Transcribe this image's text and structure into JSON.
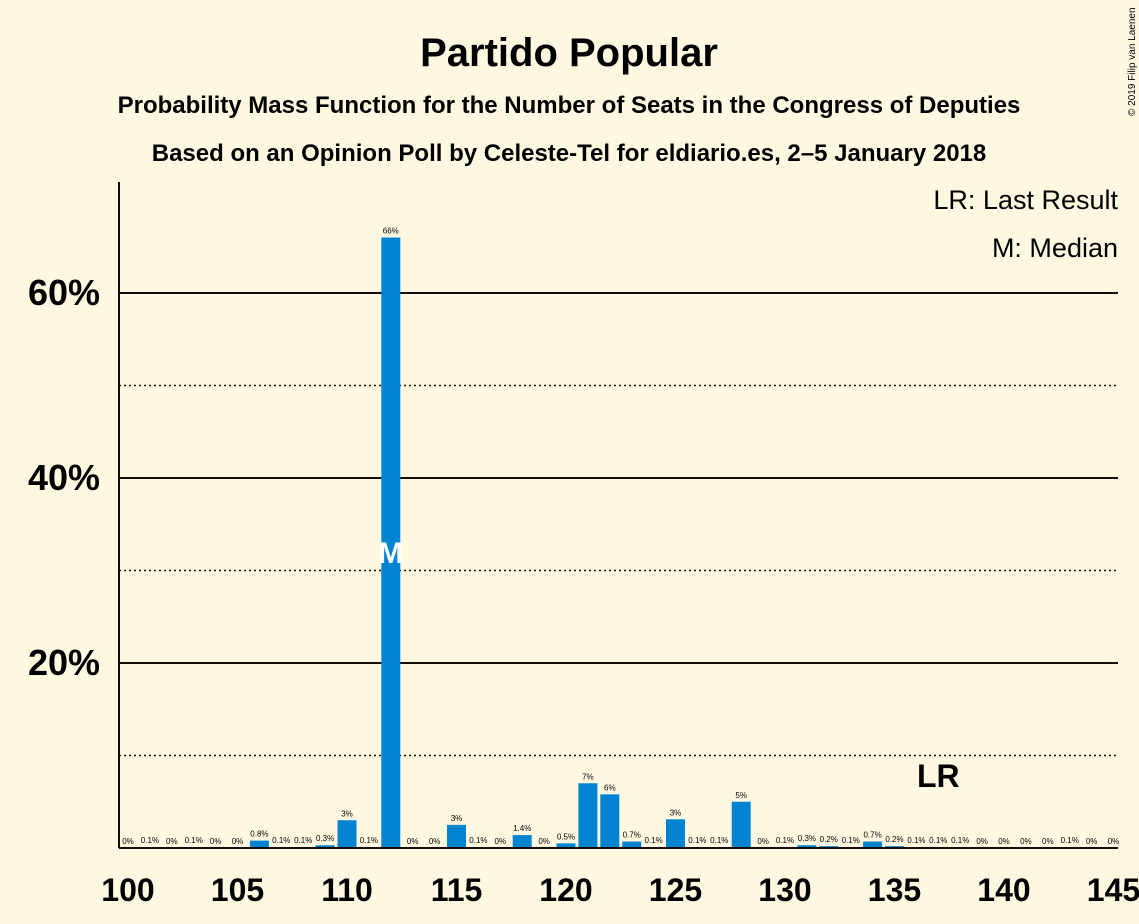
{
  "chart_data": {
    "type": "bar",
    "title": "Partido Popular",
    "subtitle_1": "Probability Mass Function for the Number of Seats in the Congress of Deputies",
    "subtitle_2": "Based on an Opinion Poll by Celeste-Tel for eldiario.es, 2–5 January 2018",
    "copyright": "© 2019 Filip van Laenen",
    "legend": {
      "lr": "LR: Last Result",
      "median": "M: Median"
    },
    "lr_marker": {
      "label": "LR",
      "seat": 137
    },
    "median_marker": {
      "label": "M",
      "seat": 112,
      "value": 33
    },
    "xlim": [
      100,
      145
    ],
    "ylim": [
      0,
      72
    ],
    "y_ticks": [
      {
        "value": 20,
        "label": "20%"
      },
      {
        "value": 40,
        "label": "40%"
      },
      {
        "value": 60,
        "label": "60%"
      }
    ],
    "y_dotted": [
      10,
      30,
      50
    ],
    "x_ticks": [
      100,
      105,
      110,
      115,
      120,
      125,
      130,
      135,
      140,
      145
    ],
    "series": [
      {
        "color": "#0084d1",
        "points": [
          {
            "seat": 100,
            "value": 0,
            "label": "0%"
          },
          {
            "seat": 101,
            "value": 0.1,
            "label": "0.1%"
          },
          {
            "seat": 102,
            "value": 0,
            "label": "0%"
          },
          {
            "seat": 103,
            "value": 0.1,
            "label": "0.1%"
          },
          {
            "seat": 104,
            "value": 0,
            "label": "0%"
          },
          {
            "seat": 105,
            "value": 0,
            "label": "0%"
          },
          {
            "seat": 106,
            "value": 0.8,
            "label": "0.8%"
          },
          {
            "seat": 107,
            "value": 0.1,
            "label": "0.1%"
          },
          {
            "seat": 108,
            "value": 0.1,
            "label": "0.1%"
          },
          {
            "seat": 109,
            "value": 0.3,
            "label": "0.3%"
          },
          {
            "seat": 110,
            "value": 3,
            "label": "3%"
          },
          {
            "seat": 111,
            "value": 0.1,
            "label": "0.1%"
          },
          {
            "seat": 112,
            "value": 66,
            "label": "66%"
          },
          {
            "seat": 113,
            "value": 0,
            "label": "0%"
          },
          {
            "seat": 114,
            "value": 0,
            "label": "0%"
          },
          {
            "seat": 115,
            "value": 2.5,
            "label": "3%"
          },
          {
            "seat": 116,
            "value": 0.1,
            "label": "0.1%"
          },
          {
            "seat": 117,
            "value": 0,
            "label": "0%"
          },
          {
            "seat": 118,
            "value": 1.4,
            "label": "1.4%"
          },
          {
            "seat": 119,
            "value": 0,
            "label": "0%"
          },
          {
            "seat": 120,
            "value": 0.5,
            "label": "0.5%"
          },
          {
            "seat": 121,
            "value": 7,
            "label": "7%"
          },
          {
            "seat": 122,
            "value": 5.8,
            "label": "6%"
          },
          {
            "seat": 123,
            "value": 0.7,
            "label": "0.7%"
          },
          {
            "seat": 124,
            "value": 0.1,
            "label": "0.1%"
          },
          {
            "seat": 125,
            "value": 3.1,
            "label": "3%"
          },
          {
            "seat": 126,
            "value": 0.1,
            "label": "0.1%"
          },
          {
            "seat": 127,
            "value": 0.1,
            "label": "0.1%"
          },
          {
            "seat": 128,
            "value": 5,
            "label": "5%"
          },
          {
            "seat": 129,
            "value": 0,
            "label": "0%"
          },
          {
            "seat": 130,
            "value": 0.1,
            "label": "0.1%"
          },
          {
            "seat": 131,
            "value": 0.3,
            "label": "0.3%"
          },
          {
            "seat": 132,
            "value": 0.2,
            "label": "0.2%"
          },
          {
            "seat": 133,
            "value": 0.1,
            "label": "0.1%"
          },
          {
            "seat": 134,
            "value": 0.7,
            "label": "0.7%"
          },
          {
            "seat": 135,
            "value": 0.2,
            "label": "0.2%"
          },
          {
            "seat": 136,
            "value": 0.1,
            "label": "0.1%"
          },
          {
            "seat": 137,
            "value": 0.1,
            "label": "0.1%"
          },
          {
            "seat": 138,
            "value": 0.1,
            "label": "0.1%"
          },
          {
            "seat": 139,
            "value": 0,
            "label": "0%"
          },
          {
            "seat": 140,
            "value": 0,
            "label": "0%"
          },
          {
            "seat": 141,
            "value": 0,
            "label": "0%"
          },
          {
            "seat": 142,
            "value": 0,
            "label": "0%"
          },
          {
            "seat": 143,
            "value": 0.1,
            "label": "0.1%"
          },
          {
            "seat": 144,
            "value": 0,
            "label": "0%"
          },
          {
            "seat": 145,
            "value": 0,
            "label": "0%"
          }
        ]
      }
    ]
  }
}
